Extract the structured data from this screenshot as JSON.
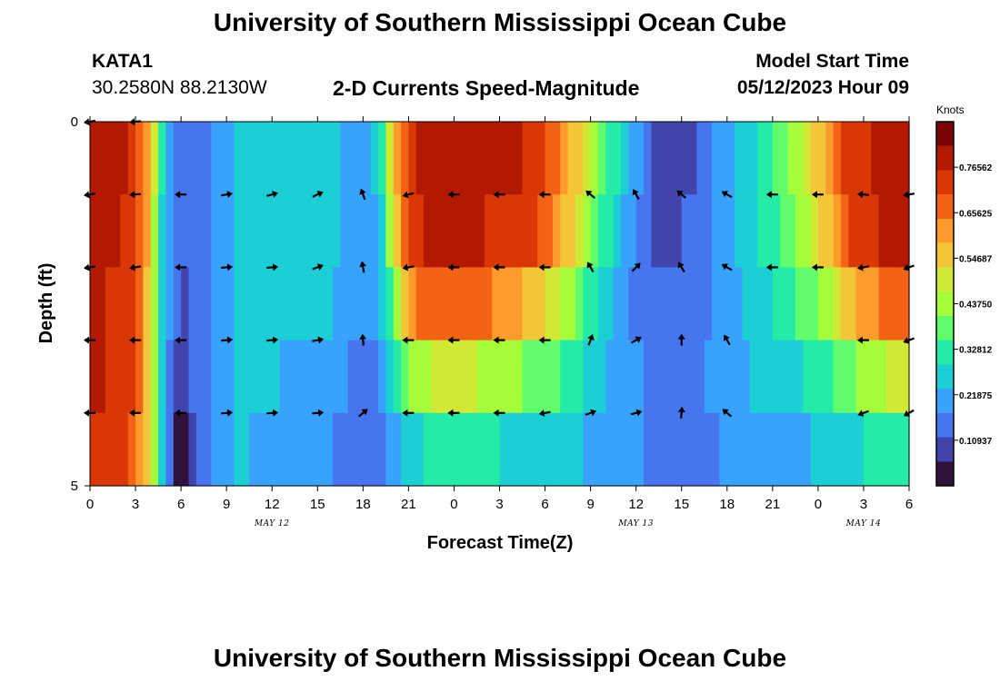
{
  "header": {
    "title": "University of Southern Mississippi Ocean Cube",
    "station": "KATA1",
    "coords": "30.2580N  88.2130W",
    "subtitle": "2-D Currents Speed-Magnitude",
    "model_label": "Model Start Time",
    "model_time": "05/12/2023 Hour 09"
  },
  "footer": {
    "title": "University of Southern Mississippi Ocean Cube"
  },
  "colors": [
    "#30123b",
    "#4145ab",
    "#4675ed",
    "#39a2fc",
    "#1bcfd4",
    "#24eca6",
    "#61fc6c",
    "#a4fc3b",
    "#d1e834",
    "#f3c63a",
    "#fe9b2d",
    "#f36315",
    "#d93806",
    "#b11901",
    "#7a0402"
  ],
  "chart_data": {
    "type": "heatmap",
    "xlabel": "Forecast Time(Z)",
    "ylabel": "Depth (ft)",
    "x_ticks": [
      "0",
      "3",
      "6",
      "9",
      "12",
      "15",
      "18",
      "21",
      "0",
      "3",
      "6",
      "9",
      "12",
      "15",
      "18",
      "21",
      "0",
      "3",
      "6"
    ],
    "y_ticks": [
      "0",
      "5"
    ],
    "date_labels": [
      {
        "text": "MAY 12",
        "at_hour": 12
      },
      {
        "text": "MAY 13",
        "at_hour": 36
      },
      {
        "text": "MAY 14",
        "at_hour": 51
      }
    ],
    "x_range_hours": [
      0,
      54
    ],
    "depth_range_ft": [
      0,
      5
    ],
    "depth_rows": 5,
    "colorbar": {
      "title": "Knots",
      "range": [
        0,
        0.875
      ],
      "ticks": [
        "0.76562",
        "0.65625",
        "0.54687",
        "0.43750",
        "0.32812",
        "0.21875",
        "0.10937"
      ],
      "tick_values": [
        0.765625,
        0.65625,
        0.546875,
        0.4375,
        0.328125,
        0.21875,
        0.109375
      ]
    },
    "speed_knots": {
      "hours": [
        0,
        1,
        2,
        3,
        4,
        4.5,
        5,
        6,
        7,
        8,
        9,
        10,
        12,
        14,
        16,
        17,
        18,
        19,
        19.5,
        20,
        21,
        22,
        24,
        26,
        28,
        30,
        32,
        34,
        36,
        38,
        40,
        42,
        44,
        46,
        48,
        49,
        50,
        52,
        54
      ],
      "rows": [
        [
          0.8,
          0.8,
          0.78,
          0.72,
          0.55,
          0.4,
          0.22,
          0.14,
          0.14,
          0.18,
          0.22,
          0.24,
          0.26,
          0.26,
          0.26,
          0.22,
          0.2,
          0.26,
          0.4,
          0.55,
          0.72,
          0.78,
          0.8,
          0.8,
          0.78,
          0.72,
          0.55,
          0.35,
          0.2,
          0.05,
          0.12,
          0.22,
          0.3,
          0.4,
          0.55,
          0.65,
          0.72,
          0.78,
          0.78
        ],
        [
          0.78,
          0.78,
          0.76,
          0.72,
          0.55,
          0.38,
          0.2,
          0.12,
          0.14,
          0.18,
          0.22,
          0.24,
          0.24,
          0.24,
          0.24,
          0.22,
          0.18,
          0.22,
          0.34,
          0.5,
          0.7,
          0.76,
          0.78,
          0.76,
          0.74,
          0.68,
          0.52,
          0.32,
          0.16,
          0.08,
          0.14,
          0.22,
          0.3,
          0.38,
          0.5,
          0.6,
          0.7,
          0.76,
          0.78
        ],
        [
          0.76,
          0.76,
          0.74,
          0.7,
          0.54,
          0.38,
          0.2,
          0.1,
          0.14,
          0.18,
          0.22,
          0.24,
          0.24,
          0.24,
          0.24,
          0.2,
          0.18,
          0.2,
          0.28,
          0.42,
          0.6,
          0.68,
          0.68,
          0.66,
          0.6,
          0.52,
          0.4,
          0.26,
          0.16,
          0.12,
          0.14,
          0.2,
          0.26,
          0.32,
          0.4,
          0.48,
          0.56,
          0.64,
          0.68
        ],
        [
          0.76,
          0.76,
          0.74,
          0.7,
          0.52,
          0.36,
          0.18,
          0.08,
          0.14,
          0.18,
          0.22,
          0.24,
          0.24,
          0.22,
          0.22,
          0.18,
          0.16,
          0.16,
          0.22,
          0.3,
          0.4,
          0.46,
          0.48,
          0.46,
          0.42,
          0.38,
          0.32,
          0.24,
          0.18,
          0.16,
          0.16,
          0.2,
          0.24,
          0.28,
          0.3,
          0.34,
          0.4,
          0.46,
          0.5
        ],
        [
          0.74,
          0.74,
          0.72,
          0.68,
          0.5,
          0.34,
          0.16,
          0.02,
          0.14,
          0.18,
          0.22,
          0.24,
          0.22,
          0.2,
          0.18,
          0.16,
          0.14,
          0.14,
          0.18,
          0.22,
          0.26,
          0.3,
          0.3,
          0.3,
          0.28,
          0.26,
          0.24,
          0.22,
          0.18,
          0.16,
          0.16,
          0.18,
          0.2,
          0.22,
          0.24,
          0.26,
          0.28,
          0.3,
          0.3
        ]
      ]
    },
    "arrows": {
      "hours": [
        0,
        3,
        6,
        9,
        12,
        15,
        18,
        21,
        24,
        27,
        30,
        33,
        36,
        39,
        42,
        45,
        48,
        51,
        54
      ],
      "rows": [
        [
          190,
          185,
          null,
          null,
          null,
          null,
          null,
          null,
          null,
          null,
          null,
          null,
          null,
          null,
          null,
          null,
          null,
          null,
          null
        ],
        [
          190,
          185,
          180,
          10,
          15,
          25,
          110,
          195,
          180,
          180,
          180,
          140,
          120,
          140,
          150,
          180,
          180,
          175,
          190
        ],
        [
          190,
          190,
          180,
          5,
          5,
          20,
          100,
          190,
          180,
          180,
          180,
          120,
          45,
          120,
          150,
          180,
          180,
          190,
          200
        ],
        [
          180,
          180,
          180,
          5,
          5,
          10,
          95,
          180,
          180,
          180,
          180,
          70,
          30,
          90,
          120,
          null,
          null,
          180,
          200
        ],
        [
          180,
          180,
          180,
          5,
          5,
          5,
          40,
          180,
          180,
          180,
          190,
          20,
          15,
          85,
          140,
          null,
          null,
          200,
          210
        ]
      ]
    }
  }
}
